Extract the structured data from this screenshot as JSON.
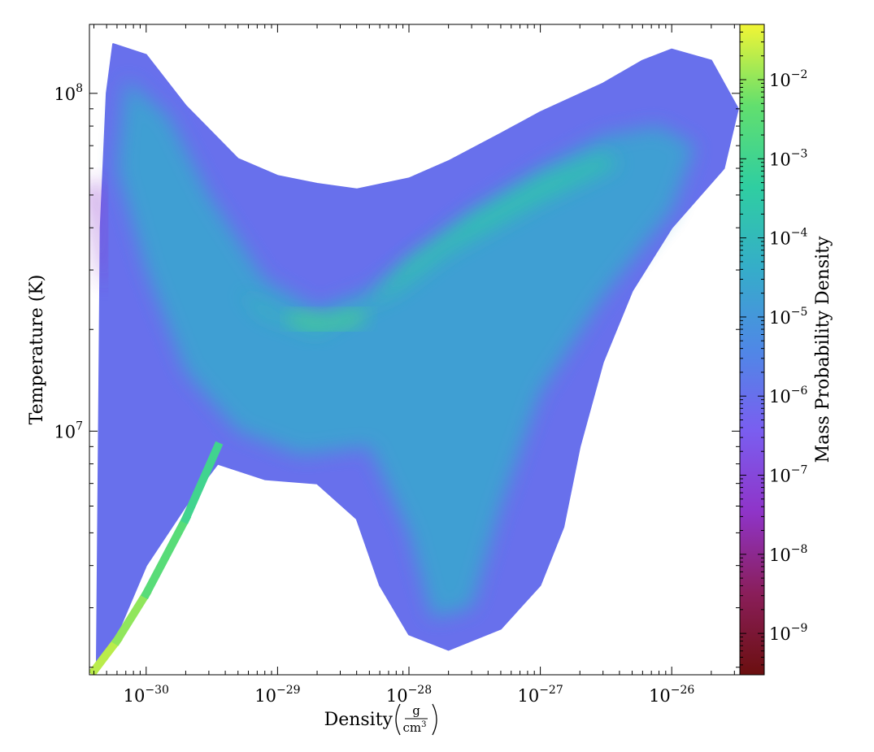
{
  "chart_data": {
    "type": "heatmap",
    "title": "",
    "xlabel": "Density",
    "xlabel_unit": {
      "numerator": "g",
      "denominator": "cm",
      "denominator_exponent": "3"
    },
    "ylabel": "Temperature  (K)",
    "xscale": "log",
    "yscale": "log",
    "xlim": [
      3.7e-31,
      3.3e-26
    ],
    "ylim": [
      1900000.0,
      160000000.0
    ],
    "x_ticks": [
      {
        "base": "10",
        "exp": "−30",
        "value": 1e-30
      },
      {
        "base": "10",
        "exp": "−29",
        "value": 1e-29
      },
      {
        "base": "10",
        "exp": "−28",
        "value": 1e-28
      },
      {
        "base": "10",
        "exp": "−27",
        "value": 1e-27
      },
      {
        "base": "10",
        "exp": "−26",
        "value": 1e-26
      }
    ],
    "y_ticks": [
      {
        "base": "10",
        "exp": "7",
        "value": 10000000.0
      },
      {
        "base": "10",
        "exp": "8",
        "value": 100000000.0
      }
    ],
    "colorbar": {
      "label": "Mass Probability Density",
      "scale": "log",
      "range": [
        3e-10,
        0.05
      ],
      "colormap": [
        "#6b0f0f",
        "#8a1e5a",
        "#8f34c8",
        "#7a5ef0",
        "#4f88e6",
        "#35adc9",
        "#2fcea1",
        "#62df6e",
        "#f2f535"
      ],
      "ticks": [
        {
          "base": "10",
          "exp": "−9",
          "value": 1e-09
        },
        {
          "base": "10",
          "exp": "−8",
          "value": 1e-08
        },
        {
          "base": "10",
          "exp": "−7",
          "value": 1e-07
        },
        {
          "base": "10",
          "exp": "−6",
          "value": 1e-06
        },
        {
          "base": "10",
          "exp": "−5",
          "value": 1e-05
        },
        {
          "base": "10",
          "exp": "−4",
          "value": 0.0001
        },
        {
          "base": "10",
          "exp": "−3",
          "value": 0.001
        },
        {
          "base": "10",
          "exp": "−2",
          "value": 0.01
        }
      ]
    },
    "regions": [
      {
        "density_range": [
          3.7e-31,
          3.3e-26
        ],
        "temperature_range": [
          1900000.0,
          160000000.0
        ],
        "level": 1e-06,
        "polygon": [
          [
            5.6e-31,
            140000000.0
          ],
          [
            1e-30,
            130000000.0
          ],
          [
            2e-30,
            92000000.0
          ],
          [
            5e-30,
            64000000.0
          ],
          [
            1e-29,
            57000000.0
          ],
          [
            2e-29,
            54000000.0
          ],
          [
            4e-29,
            52000000.0
          ],
          [
            1e-28,
            56000000.0
          ],
          [
            2e-28,
            63000000.0
          ],
          [
            5e-28,
            76000000.0
          ],
          [
            1e-27,
            88000000.0
          ],
          [
            3e-27,
            107000000.0
          ],
          [
            6e-27,
            125000000.0
          ],
          [
            1e-26,
            135000000.0
          ],
          [
            2e-26,
            125000000.0
          ],
          [
            3.2e-26,
            90000000.0
          ],
          [
            2.5e-26,
            60000000.0
          ],
          [
            1e-26,
            40000000.0
          ],
          [
            5e-27,
            26000000.0
          ],
          [
            3e-27,
            16000000.0
          ],
          [
            2e-27,
            9000000.0
          ],
          [
            1.5e-27,
            5200000.0
          ],
          [
            1e-27,
            3500000.0
          ],
          [
            5e-28,
            2600000.0
          ],
          [
            2e-28,
            2250000.0
          ],
          [
            1e-28,
            2500000.0
          ],
          [
            6e-29,
            3500000.0
          ],
          [
            4e-29,
            5500000.0
          ],
          [
            2e-29,
            7000000.0
          ],
          [
            8e-30,
            7200000.0
          ],
          [
            3.5e-30,
            8000000.0
          ],
          [
            2e-30,
            6000000.0
          ],
          [
            1e-30,
            4000000.0
          ],
          [
            6e-31,
            2500000.0
          ],
          [
            4.2e-31,
            1950000.0
          ],
          [
            4.5e-31,
            40000000.0
          ],
          [
            5e-31,
            100000000.0
          ]
        ]
      },
      {
        "level": 2e-05,
        "polygon": [
          [
            7e-31,
            110000000.0
          ],
          [
            1.5e-30,
            85000000.0
          ],
          [
            3e-30,
            50000000.0
          ],
          [
            8e-30,
            28000000.0
          ],
          [
            2e-29,
            23000000.0
          ],
          [
            5e-29,
            26000000.0
          ],
          [
            1e-28,
            32000000.0
          ],
          [
            3e-28,
            45000000.0
          ],
          [
            1e-27,
            60000000.0
          ],
          [
            3e-27,
            75000000.0
          ],
          [
            8e-27,
            80000000.0
          ],
          [
            1.5e-26,
            70000000.0
          ],
          [
            1e-26,
            45000000.0
          ],
          [
            3e-27,
            25000000.0
          ],
          [
            1e-27,
            13000000.0
          ],
          [
            5e-28,
            6000000.0
          ],
          [
            3e-28,
            3000000.0
          ],
          [
            1.5e-28,
            2800000.0
          ],
          [
            1e-28,
            5000000.0
          ],
          [
            5e-29,
            9000000.0
          ],
          [
            1.5e-29,
            8500000.0
          ],
          [
            5e-30,
            10000000.0
          ],
          [
            2e-30,
            15000000.0
          ],
          [
            1e-30,
            30000000.0
          ],
          [
            6e-31,
            60000000.0
          ]
        ]
      },
      {
        "level": 0.0002,
        "polygon": [
          [
            5e-30,
            26000000.0
          ],
          [
            1e-29,
            22000000.0
          ],
          [
            2e-29,
            20500000.0
          ],
          [
            5e-29,
            24000000.0
          ],
          [
            1e-28,
            32000000.0
          ],
          [
            3e-28,
            43000000.0
          ],
          [
            1e-27,
            56000000.0
          ],
          [
            3e-27,
            66000000.0
          ],
          [
            4e-27,
            62000000.0
          ],
          [
            1e-27,
            48000000.0
          ],
          [
            2e-28,
            34000000.0
          ],
          [
            8e-29,
            26000000.0
          ],
          [
            2e-29,
            19500000.0
          ],
          [
            8e-30,
            22000000.0
          ]
        ]
      },
      {
        "level": 0.0015,
        "polygon": [
          [
            1.2e-29,
            22500000.0
          ],
          [
            2.5e-29,
            21500000.0
          ],
          [
            5e-29,
            23000000.0
          ],
          [
            4e-29,
            20500000.0
          ],
          [
            2e-29,
            20000000.0
          ],
          [
            1.2e-29,
            21000000.0
          ]
        ]
      },
      {
        "level": 5e-08,
        "polygon": [
          [
            3.8e-31,
            52000000.0
          ],
          [
            4.4e-31,
            56000000.0
          ],
          [
            5e-31,
            26000000.0
          ],
          [
            4.5e-31,
            30000000.0
          ]
        ]
      }
    ],
    "diagonal_branch": {
      "points": [
        [
          4e-31,
          1950000.0
        ],
        [
          6e-31,
          2400000.0
        ],
        [
          1e-30,
          3300000.0
        ],
        [
          2e-30,
          5500000.0
        ],
        [
          3.5e-30,
          9000000.0
        ]
      ],
      "levels": [
        0.02,
        0.01,
        0.003,
        0.001,
        0.0003
      ]
    }
  }
}
